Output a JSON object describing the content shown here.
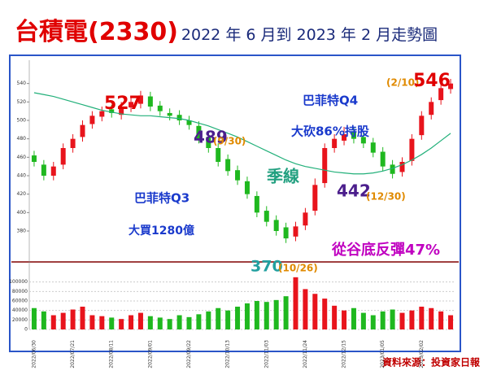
{
  "chart_data": {
    "type": "candlestick",
    "title": "台積電(2330)",
    "subtitle": "2022 年 6 月到 2023 年 2 月走勢圖",
    "source": "資料來源：投資家日報",
    "categories": [
      "2022/06/30",
      null,
      null,
      null,
      "2022/07/21",
      null,
      null,
      null,
      "2022/08/11",
      null,
      null,
      null,
      "2022/09/01",
      null,
      null,
      null,
      "2022/09/22",
      null,
      null,
      null,
      "2022/10/13",
      null,
      null,
      null,
      "2022/11/03",
      null,
      null,
      null,
      "2022/11/24",
      null,
      null,
      null,
      "2022/12/15",
      null,
      null,
      null,
      "2023/01/05",
      null,
      null,
      null,
      "2023/02/02",
      null,
      null,
      null
    ],
    "open": [
      462,
      452,
      440,
      452,
      470,
      482,
      496,
      504,
      512,
      506,
      514,
      518,
      526,
      516,
      508,
      506,
      500,
      494,
      482,
      470,
      458,
      446,
      434,
      418,
      402,
      392,
      384,
      374,
      386,
      402,
      432,
      470,
      478,
      488,
      482,
      476,
      466,
      452,
      444,
      456,
      484,
      506,
      522,
      534
    ],
    "close": [
      455,
      440,
      450,
      470,
      480,
      495,
      505,
      510,
      508,
      515,
      520,
      527,
      515,
      510,
      505,
      500,
      495,
      480,
      470,
      455,
      445,
      435,
      420,
      400,
      390,
      380,
      372,
      385,
      400,
      430,
      470,
      480,
      485,
      480,
      475,
      465,
      450,
      442,
      455,
      480,
      505,
      520,
      535,
      540
    ],
    "high": [
      467,
      457,
      455,
      475,
      485,
      500,
      510,
      515,
      517,
      520,
      525,
      532,
      531,
      521,
      513,
      511,
      505,
      499,
      487,
      475,
      463,
      451,
      439,
      423,
      407,
      397,
      389,
      390,
      405,
      437,
      475,
      485,
      493,
      493,
      487,
      481,
      471,
      457,
      460,
      485,
      510,
      525,
      540,
      545
    ],
    "low": [
      450,
      435,
      435,
      447,
      465,
      477,
      491,
      499,
      503,
      501,
      509,
      513,
      510,
      505,
      500,
      495,
      490,
      475,
      465,
      450,
      440,
      430,
      415,
      395,
      385,
      375,
      367,
      369,
      381,
      397,
      427,
      465,
      473,
      475,
      470,
      460,
      445,
      437,
      439,
      451,
      479,
      501,
      517,
      529
    ],
    "ma": [
      530,
      528,
      526,
      523,
      520,
      517,
      514,
      511,
      509,
      507,
      506,
      505,
      505,
      504,
      503,
      502,
      500,
      497,
      494,
      490,
      486,
      482,
      477,
      472,
      467,
      462,
      457,
      453,
      450,
      448,
      446,
      444,
      443,
      442,
      442,
      443,
      445,
      448,
      452,
      457,
      463,
      470,
      478,
      486
    ],
    "volume": [
      45000,
      38000,
      30000,
      35000,
      42000,
      48000,
      30000,
      28000,
      25000,
      22000,
      30000,
      35000,
      28000,
      25000,
      22000,
      30000,
      26000,
      32000,
      38000,
      45000,
      40000,
      48000,
      55000,
      60000,
      58000,
      62000,
      70000,
      110000,
      85000,
      75000,
      65000,
      50000,
      40000,
      45000,
      35000,
      30000,
      38000,
      42000,
      35000,
      40000,
      48000,
      45000,
      38000,
      30000
    ],
    "up_color": "#e8141c",
    "down_color": "#1fb81f",
    "ma_color": "#22b07a",
    "ylim": [
      350,
      560
    ],
    "yticks": [
      380,
      400,
      420,
      440,
      460,
      480,
      500,
      520,
      540
    ],
    "vol_ylim": [
      0,
      120000
    ],
    "vol_ticks": [
      0,
      20000,
      40000,
      60000,
      80000,
      100000
    ],
    "annotations": [
      "527",
      "489",
      "(9/30)",
      "巴菲特Q3",
      "大買1280億",
      "季線",
      "370",
      "(10/26)",
      "巴菲特Q4",
      "大砍86%持股",
      "442",
      "(12/30)",
      "(2/10)",
      "546",
      "從谷底反彈47%"
    ]
  }
}
